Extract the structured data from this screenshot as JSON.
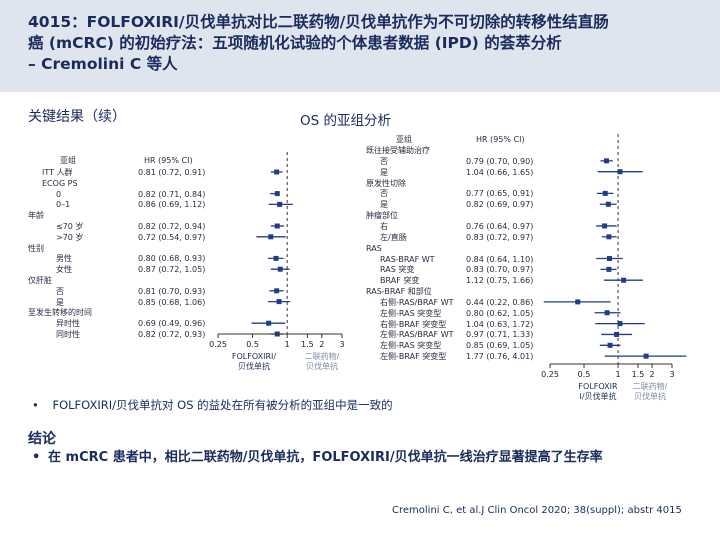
{
  "header": {
    "title_line1": "4015：FOLFOXIRI/贝伐单抗对比二联药物/贝伐单抗作为不可切除的转移性结直肠",
    "title_line2": "癌 (mCRC) 的初始疗法：五项随机化试验的个体患者数据 (IPD) 的荟萃分析",
    "title_line3": "– Cremolini C 等人"
  },
  "section": {
    "key_results": "关键结果（续）",
    "os_title": "OS 的亚组分析"
  },
  "colors": {
    "marker": "#1f3d8c",
    "header_bg": "#dfe5ee",
    "text": "#1a2b5c"
  },
  "left_plot": {
    "col_subgroup": "亚组",
    "col_hr": "HR (95% CI)",
    "rows": [
      {
        "label": "ITT 人群",
        "hr_text": "0.81 (0.72, 0.91)",
        "indent": 1
      },
      {
        "label": "ECOG PS",
        "hr_text": "",
        "indent": 1
      },
      {
        "label": "0",
        "hr_text": "0.82 (0.71, 0.84)",
        "indent": 2
      },
      {
        "label": "0–1",
        "hr_text": "0.86 (0.69, 1.12)",
        "indent": 2
      },
      {
        "label": "年龄",
        "hr_text": "",
        "indent": 0
      },
      {
        "label": "≤70 岁",
        "hr_text": "0.82 (0.72, 0.94)",
        "indent": 2
      },
      {
        "label": ">70 岁",
        "hr_text": "0.72 (0.54, 0.97)",
        "indent": 2
      },
      {
        "label": "性别",
        "hr_text": "",
        "indent": 0
      },
      {
        "label": "男性",
        "hr_text": "0.80 (0.68, 0.93)",
        "indent": 2
      },
      {
        "label": "女性",
        "hr_text": "0.87 (0.72, 1.05)",
        "indent": 2
      },
      {
        "label": "仅肝脏",
        "hr_text": "",
        "indent": 0
      },
      {
        "label": "否",
        "hr_text": "0.81 (0.70, 0.93)",
        "indent": 2
      },
      {
        "label": "是",
        "hr_text": "0.85 (0.68, 1.06)",
        "indent": 2
      },
      {
        "label": "至发生转移的时间",
        "hr_text": "",
        "indent": 0
      },
      {
        "label": "异时性",
        "hr_text": "0.69 (0.49, 0.96)",
        "indent": 2
      },
      {
        "label": "同时性",
        "hr_text": "0.82 (0.72, 0.93)",
        "indent": 2
      }
    ],
    "axis_ticks": [
      "0.25",
      "0.5",
      "1",
      "1.5",
      "2",
      "3"
    ],
    "favours_left": [
      "FOLFOXIRI/",
      "贝伐单抗"
    ],
    "favours_right": [
      "二联药物/",
      "贝伐单抗"
    ]
  },
  "right_plot": {
    "col_subgroup": "亚组",
    "col_hr": "HR (95% CI)",
    "rows": [
      {
        "label": "既往接受辅助治疗",
        "hr_text": "",
        "indent": 0
      },
      {
        "label": "否",
        "hr_text": "0.79 (0.70, 0.90)",
        "indent": 1
      },
      {
        "label": "是",
        "hr_text": "1.04 (0.66, 1.65)",
        "indent": 1
      },
      {
        "label": "原发性切除",
        "hr_text": "",
        "indent": 0
      },
      {
        "label": "否",
        "hr_text": "0.77 (0.65, 0.91)",
        "indent": 1
      },
      {
        "label": "是",
        "hr_text": "0.82 (0.69, 0.97)",
        "indent": 1
      },
      {
        "label": "肿瘤部位",
        "hr_text": "",
        "indent": 0
      },
      {
        "label": "右",
        "hr_text": "0.76 (0.64, 0.97)",
        "indent": 1
      },
      {
        "label": "左/直肠",
        "hr_text": "0.83 (0.72, 0.97)",
        "indent": 1
      },
      {
        "label": "RAS",
        "hr_text": "",
        "indent": 0
      },
      {
        "label": "RAS-BRAF WT",
        "hr_text": "0.84 (0.64, 1.10)",
        "indent": 1
      },
      {
        "label": "RAS 突变",
        "hr_text": "0.83 (0.70, 0.97)",
        "indent": 1
      },
      {
        "label": "BRAF 突变",
        "hr_text": "1.12 (0.75, 1.66)",
        "indent": 1
      },
      {
        "label": "RAS-BRAF 和部位",
        "hr_text": "",
        "indent": 0
      },
      {
        "label": "右侧-RAS/BRAF WT",
        "hr_text": "0.44 (0.22, 0.86)",
        "indent": 1
      },
      {
        "label": "左侧-RAS 突变型",
        "hr_text": "0.80 (0.62, 1.05)",
        "indent": 1
      },
      {
        "label": "右侧-BRAF 突变型",
        "hr_text": "1.04 (0.63, 1.72)",
        "indent": 1
      },
      {
        "label": "左侧-RAS/BRAF WT",
        "hr_text": "0.97 (0.71, 1.33)",
        "indent": 1
      },
      {
        "label": "左侧-RAS 突变型",
        "hr_text": "0.85 (0.69, 1.05)",
        "indent": 1
      },
      {
        "label": "左侧-BRAF 突变型",
        "hr_text": "1.77 (0.76, 4.01)",
        "indent": 1
      }
    ],
    "axis_ticks": [
      "0.25",
      "0.5",
      "1",
      "1.5",
      "2",
      "3"
    ],
    "favours_left": [
      "FOLFOXIR",
      "I/贝伐单抗"
    ],
    "favours_right": [
      "二联药物/",
      "贝伐单抗"
    ]
  },
  "chart_data": [
    {
      "type": "forest",
      "xlabel": "",
      "ylabel": "",
      "xscale": "log",
      "xlim": [
        0.25,
        3
      ],
      "reference_line": 1,
      "categories": [
        "ITT 人群",
        "ECOG PS 0",
        "ECOG PS 0–1",
        "年龄 ≤70 岁",
        "年龄 >70 岁",
        "性别 男性",
        "性别 女性",
        "仅肝脏 否",
        "仅肝脏 是",
        "至发生转移的时间 异时性",
        "至发生转移的时间 同时性"
      ],
      "hr": [
        0.81,
        0.82,
        0.86,
        0.82,
        0.72,
        0.8,
        0.87,
        0.81,
        0.85,
        0.69,
        0.82
      ],
      "ci_low": [
        0.72,
        0.71,
        0.69,
        0.72,
        0.54,
        0.68,
        0.72,
        0.7,
        0.68,
        0.49,
        0.72
      ],
      "ci_high": [
        0.91,
        0.84,
        1.12,
        0.94,
        0.97,
        0.93,
        1.05,
        0.93,
        1.06,
        0.96,
        0.93
      ]
    },
    {
      "type": "forest",
      "xlabel": "",
      "ylabel": "",
      "xscale": "log",
      "xlim": [
        0.25,
        3
      ],
      "reference_line": 1,
      "categories": [
        "既往接受辅助治疗 否",
        "既往接受辅助治疗 是",
        "原发性切除 否",
        "原发性切除 是",
        "肿瘤部位 右",
        "肿瘤部位 左/直肠",
        "RAS-BRAF WT",
        "RAS 突变",
        "BRAF 突变",
        "右侧-RAS/BRAF WT",
        "左侧-RAS 突变型",
        "右侧-BRAF 突变型",
        "左侧-RAS/BRAF WT",
        "左侧-RAS 突变型",
        "左侧-BRAF 突变型"
      ],
      "hr": [
        0.79,
        1.04,
        0.77,
        0.82,
        0.76,
        0.83,
        0.84,
        0.83,
        1.12,
        0.44,
        0.8,
        1.04,
        0.97,
        0.85,
        1.77
      ],
      "ci_low": [
        0.7,
        0.66,
        0.65,
        0.69,
        0.64,
        0.72,
        0.64,
        0.7,
        0.75,
        0.22,
        0.62,
        0.63,
        0.71,
        0.69,
        0.76
      ],
      "ci_high": [
        0.9,
        1.65,
        0.91,
        0.97,
        0.97,
        0.97,
        1.1,
        0.97,
        1.66,
        0.86,
        1.05,
        1.72,
        1.33,
        1.05,
        4.01
      ]
    }
  ],
  "bullet": {
    "symbol": "•",
    "text": "FOLFOXIRI/贝伐单抗对 OS 的益处在所有被分析的亚组中是一致的"
  },
  "conclusion": {
    "title": "结论",
    "symbol": "•",
    "text": "在 mCRC 患者中，相比二联药物/贝伐单抗，FOLFOXIRI/贝伐单抗一线治疗显著提高了生存率"
  },
  "citation": "Cremolini C, et al.J Clin Oncol 2020; 38(suppl); abstr 4015"
}
